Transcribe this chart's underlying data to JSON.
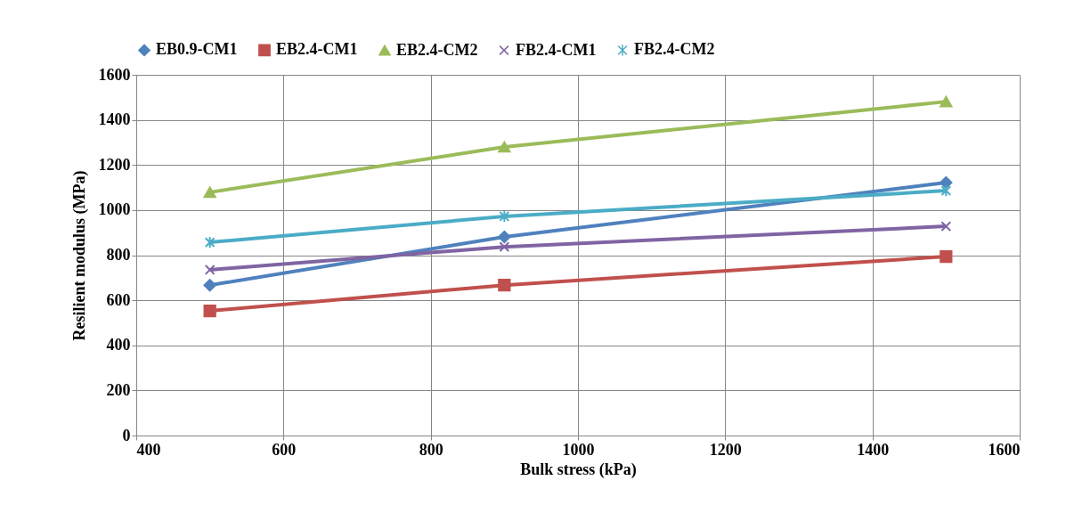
{
  "chart_data": {
    "type": "line",
    "xlabel": "Bulk stress (kPa)",
    "ylabel": "Resilient modulus (MPa)",
    "x": [
      500,
      900,
      1500
    ],
    "xlim": [
      400,
      1600
    ],
    "xticks": [
      400,
      600,
      800,
      1000,
      1200,
      1400,
      1600
    ],
    "ylim": [
      0,
      1600
    ],
    "yticks": [
      0,
      200,
      400,
      600,
      800,
      1000,
      1200,
      1400,
      1600
    ],
    "grid": true,
    "legend": "top",
    "line_style": "solid",
    "series": [
      {
        "name": "EB0.9-CM1",
        "color": "#4f81bd",
        "marker": "diamond",
        "values": [
          667,
          881,
          1122
        ]
      },
      {
        "name": "EB2.4-CM1",
        "color": "#c0504d",
        "marker": "square",
        "values": [
          553,
          667,
          794
        ]
      },
      {
        "name": "EB2.4-CM2",
        "color": "#9bbb59",
        "marker": "triangle",
        "values": [
          1079,
          1280,
          1481
        ]
      },
      {
        "name": "FB2.4-CM1",
        "color": "#8064a2",
        "marker": "cross",
        "values": [
          735,
          837,
          928
        ]
      },
      {
        "name": "FB2.4-CM2",
        "color": "#4bacc6",
        "marker": "cross",
        "values": [
          857,
          972,
          1086
        ]
      }
    ]
  }
}
